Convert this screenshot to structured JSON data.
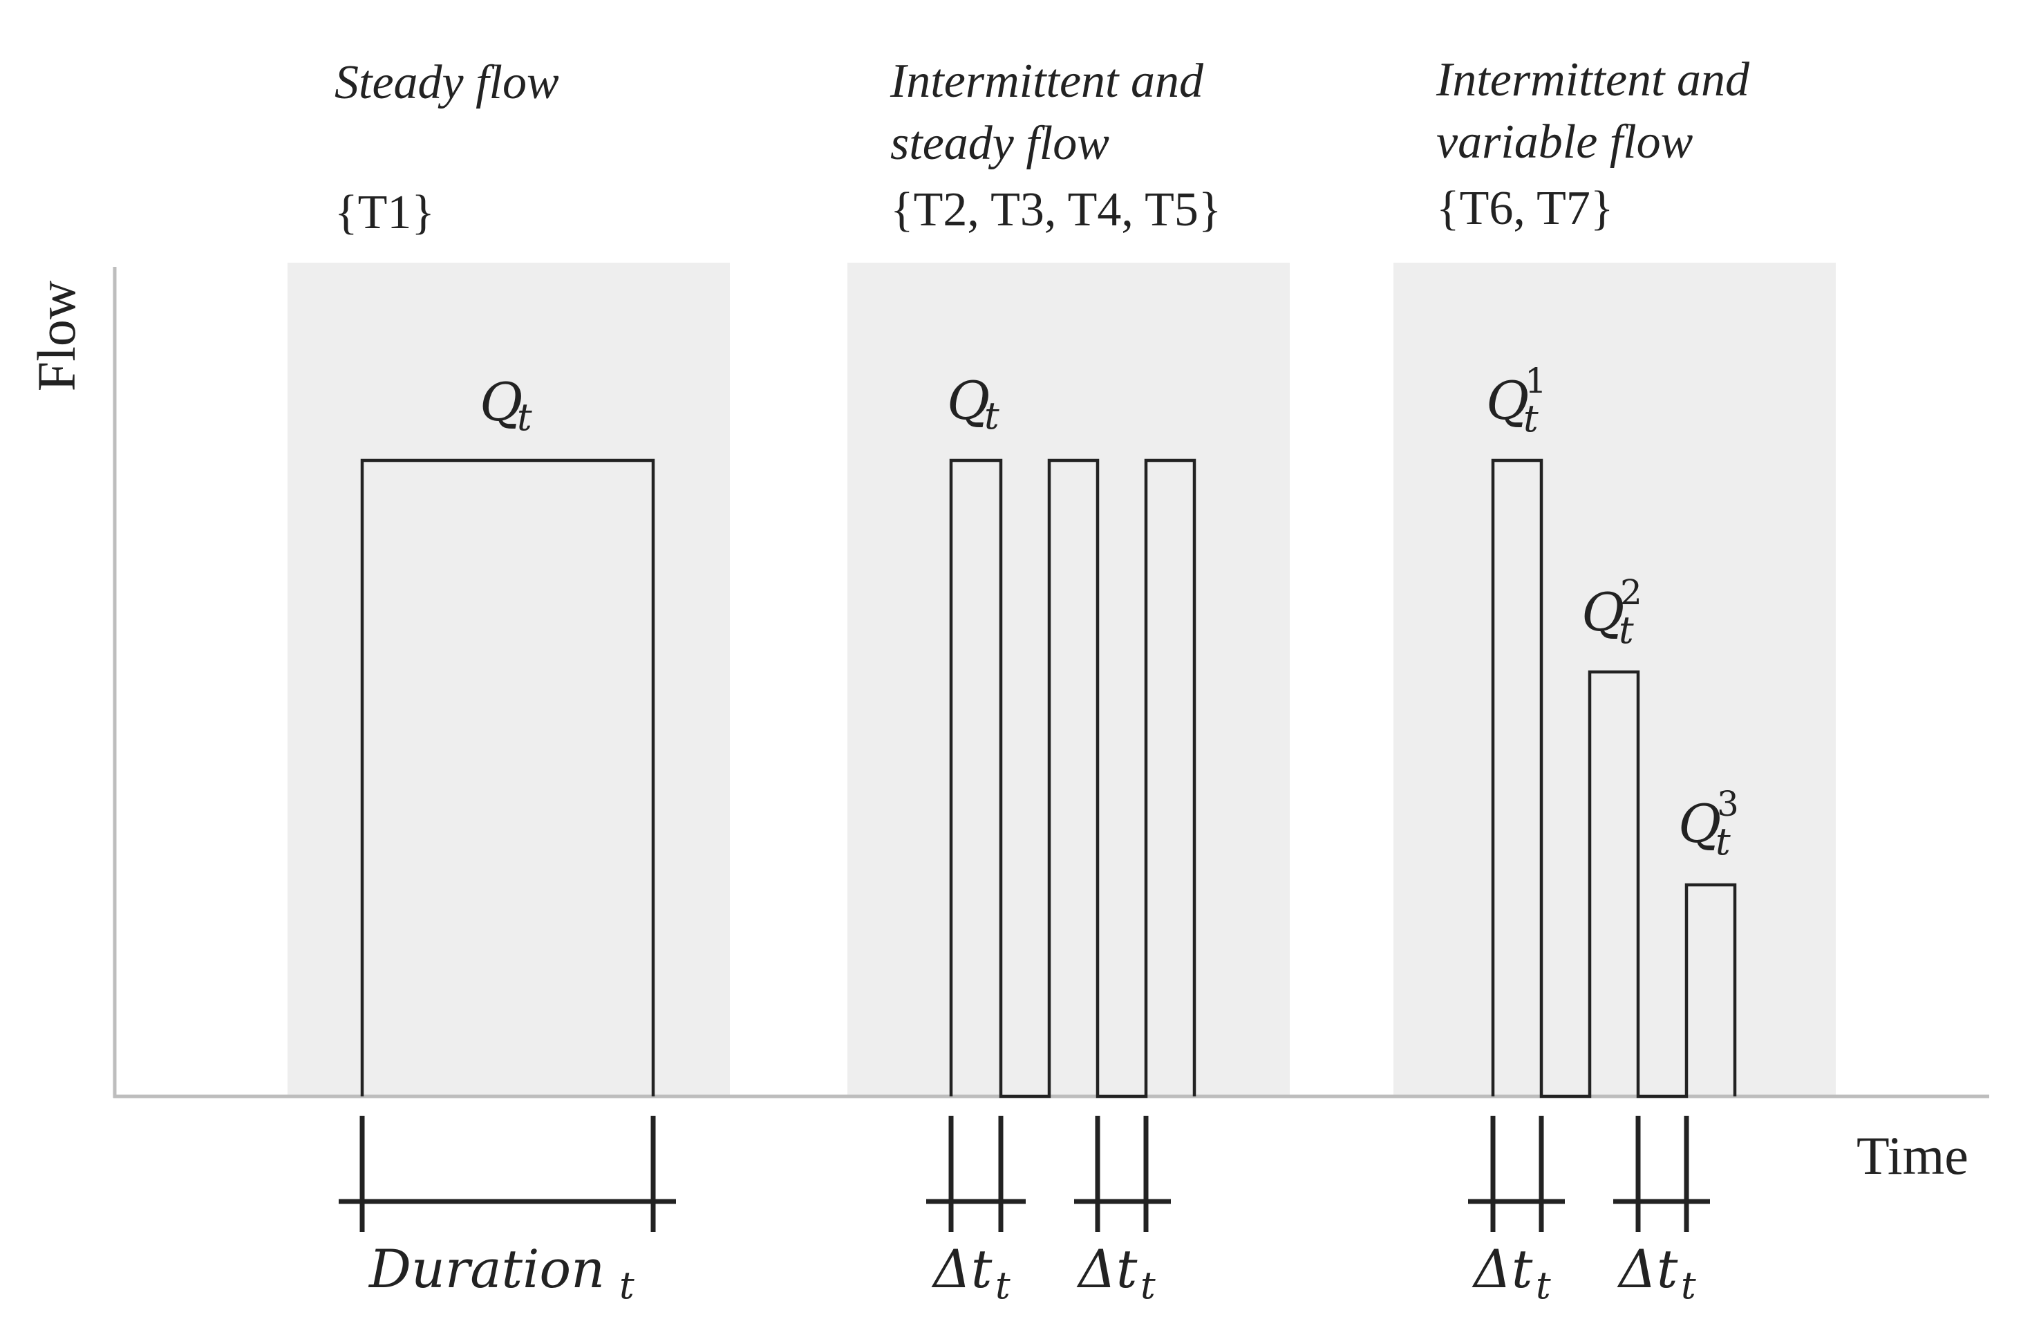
{
  "figure": {
    "axes": {
      "y_label": "Flow",
      "x_label": "Time"
    },
    "panels": [
      {
        "title": "Steady flow",
        "set_label": "{T1}",
        "flow_labels": [
          {
            "base": "Q",
            "subscript": "t",
            "superscript": ""
          }
        ],
        "durations": [
          {
            "base": "Duration",
            "subscript": "t"
          }
        ]
      },
      {
        "title_line1": "Intermittent and",
        "title_line2": "steady flow",
        "set_label": "{T2, T3, T4, T5}",
        "flow_labels": [
          {
            "base": "Q",
            "subscript": "t",
            "superscript": ""
          }
        ],
        "durations": [
          {
            "base": "Δt",
            "subscript": "t"
          },
          {
            "base": "Δt",
            "subscript": "t"
          }
        ]
      },
      {
        "title_line1": "Intermittent and",
        "title_line2": "variable flow",
        "set_label": "{T6, T7}",
        "flow_labels": [
          {
            "base": "Q",
            "subscript": "t",
            "superscript": "1"
          },
          {
            "base": "Q",
            "subscript": "t",
            "superscript": "2"
          },
          {
            "base": "Q",
            "subscript": "t",
            "superscript": "3"
          }
        ],
        "durations": [
          {
            "base": "Δt",
            "subscript": "t"
          },
          {
            "base": "Δt",
            "subscript": "t"
          }
        ]
      }
    ],
    "pulse_levels": {
      "panel1": [
        1.0
      ],
      "panel2": [
        1.0,
        1.0,
        1.0
      ],
      "panel3": [
        1.0,
        0.667,
        0.333
      ]
    },
    "colors": {
      "band": "#eeeeee",
      "axis": "#bdbdbd",
      "ink": "#222222"
    }
  }
}
